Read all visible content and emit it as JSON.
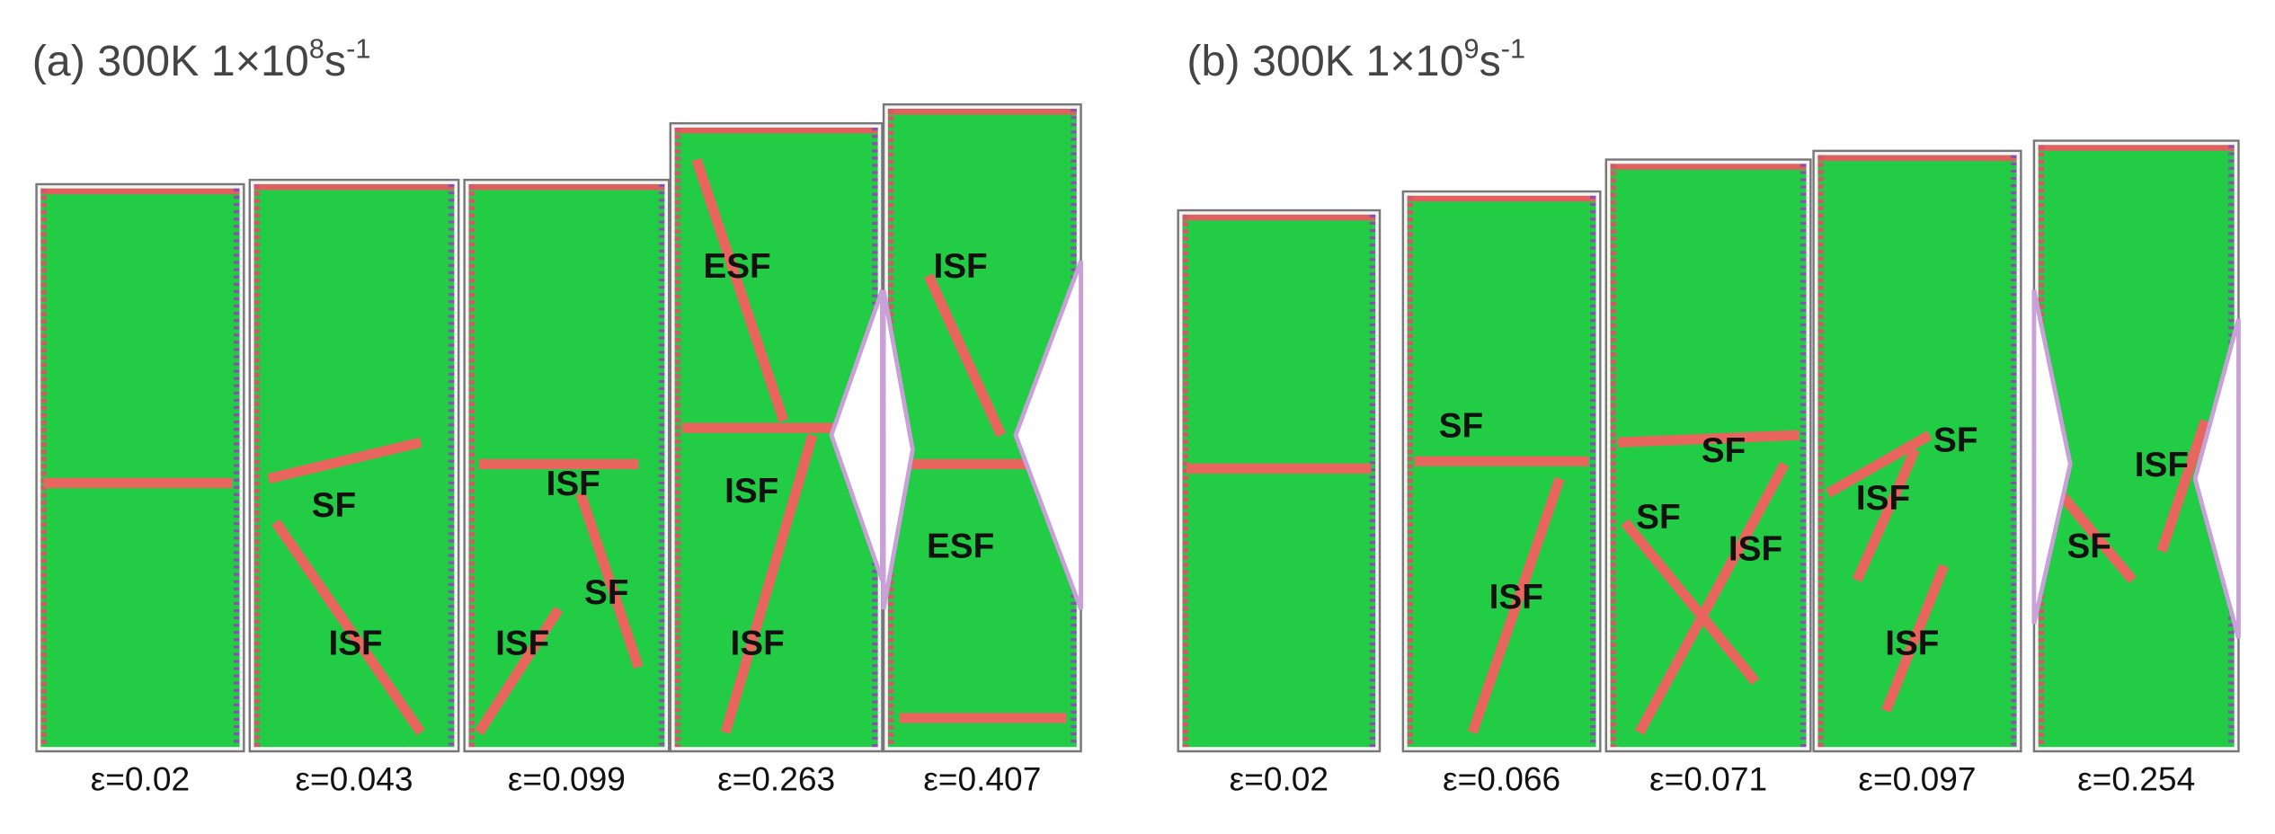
{
  "panels": [
    {
      "title": {
        "prefix": "(a) 300K 1×10",
        "exp": "8",
        "unit": "s",
        "unit_exp": "-1"
      },
      "snapshots": [
        {
          "strain": "ε=0.02"
        },
        {
          "strain": "ε=0.043",
          "labels": [
            "SF",
            "ISF"
          ]
        },
        {
          "strain": "ε=0.099",
          "labels": [
            "ISF",
            "SF",
            "ISF"
          ]
        },
        {
          "strain": "ε=0.263",
          "labels": [
            "ESF",
            "ISF",
            "ISF"
          ]
        },
        {
          "strain": "ε=0.407",
          "labels": [
            "ISF",
            "ESF"
          ]
        }
      ]
    },
    {
      "title": {
        "prefix": "(b) 300K 1×10",
        "exp": "9",
        "unit": "s",
        "unit_exp": "-1"
      },
      "snapshots": [
        {
          "strain": "ε=0.02"
        },
        {
          "strain": "ε=0.066",
          "labels": [
            "SF",
            "ISF"
          ]
        },
        {
          "strain": "ε=0.071",
          "labels": [
            "SF",
            "SF",
            "ISF"
          ]
        },
        {
          "strain": "ε=0.097",
          "labels": [
            "SF",
            "ISF",
            "ISF"
          ]
        },
        {
          "strain": "ε=0.254",
          "labels": [
            "ISF",
            "SF"
          ]
        }
      ]
    }
  ]
}
